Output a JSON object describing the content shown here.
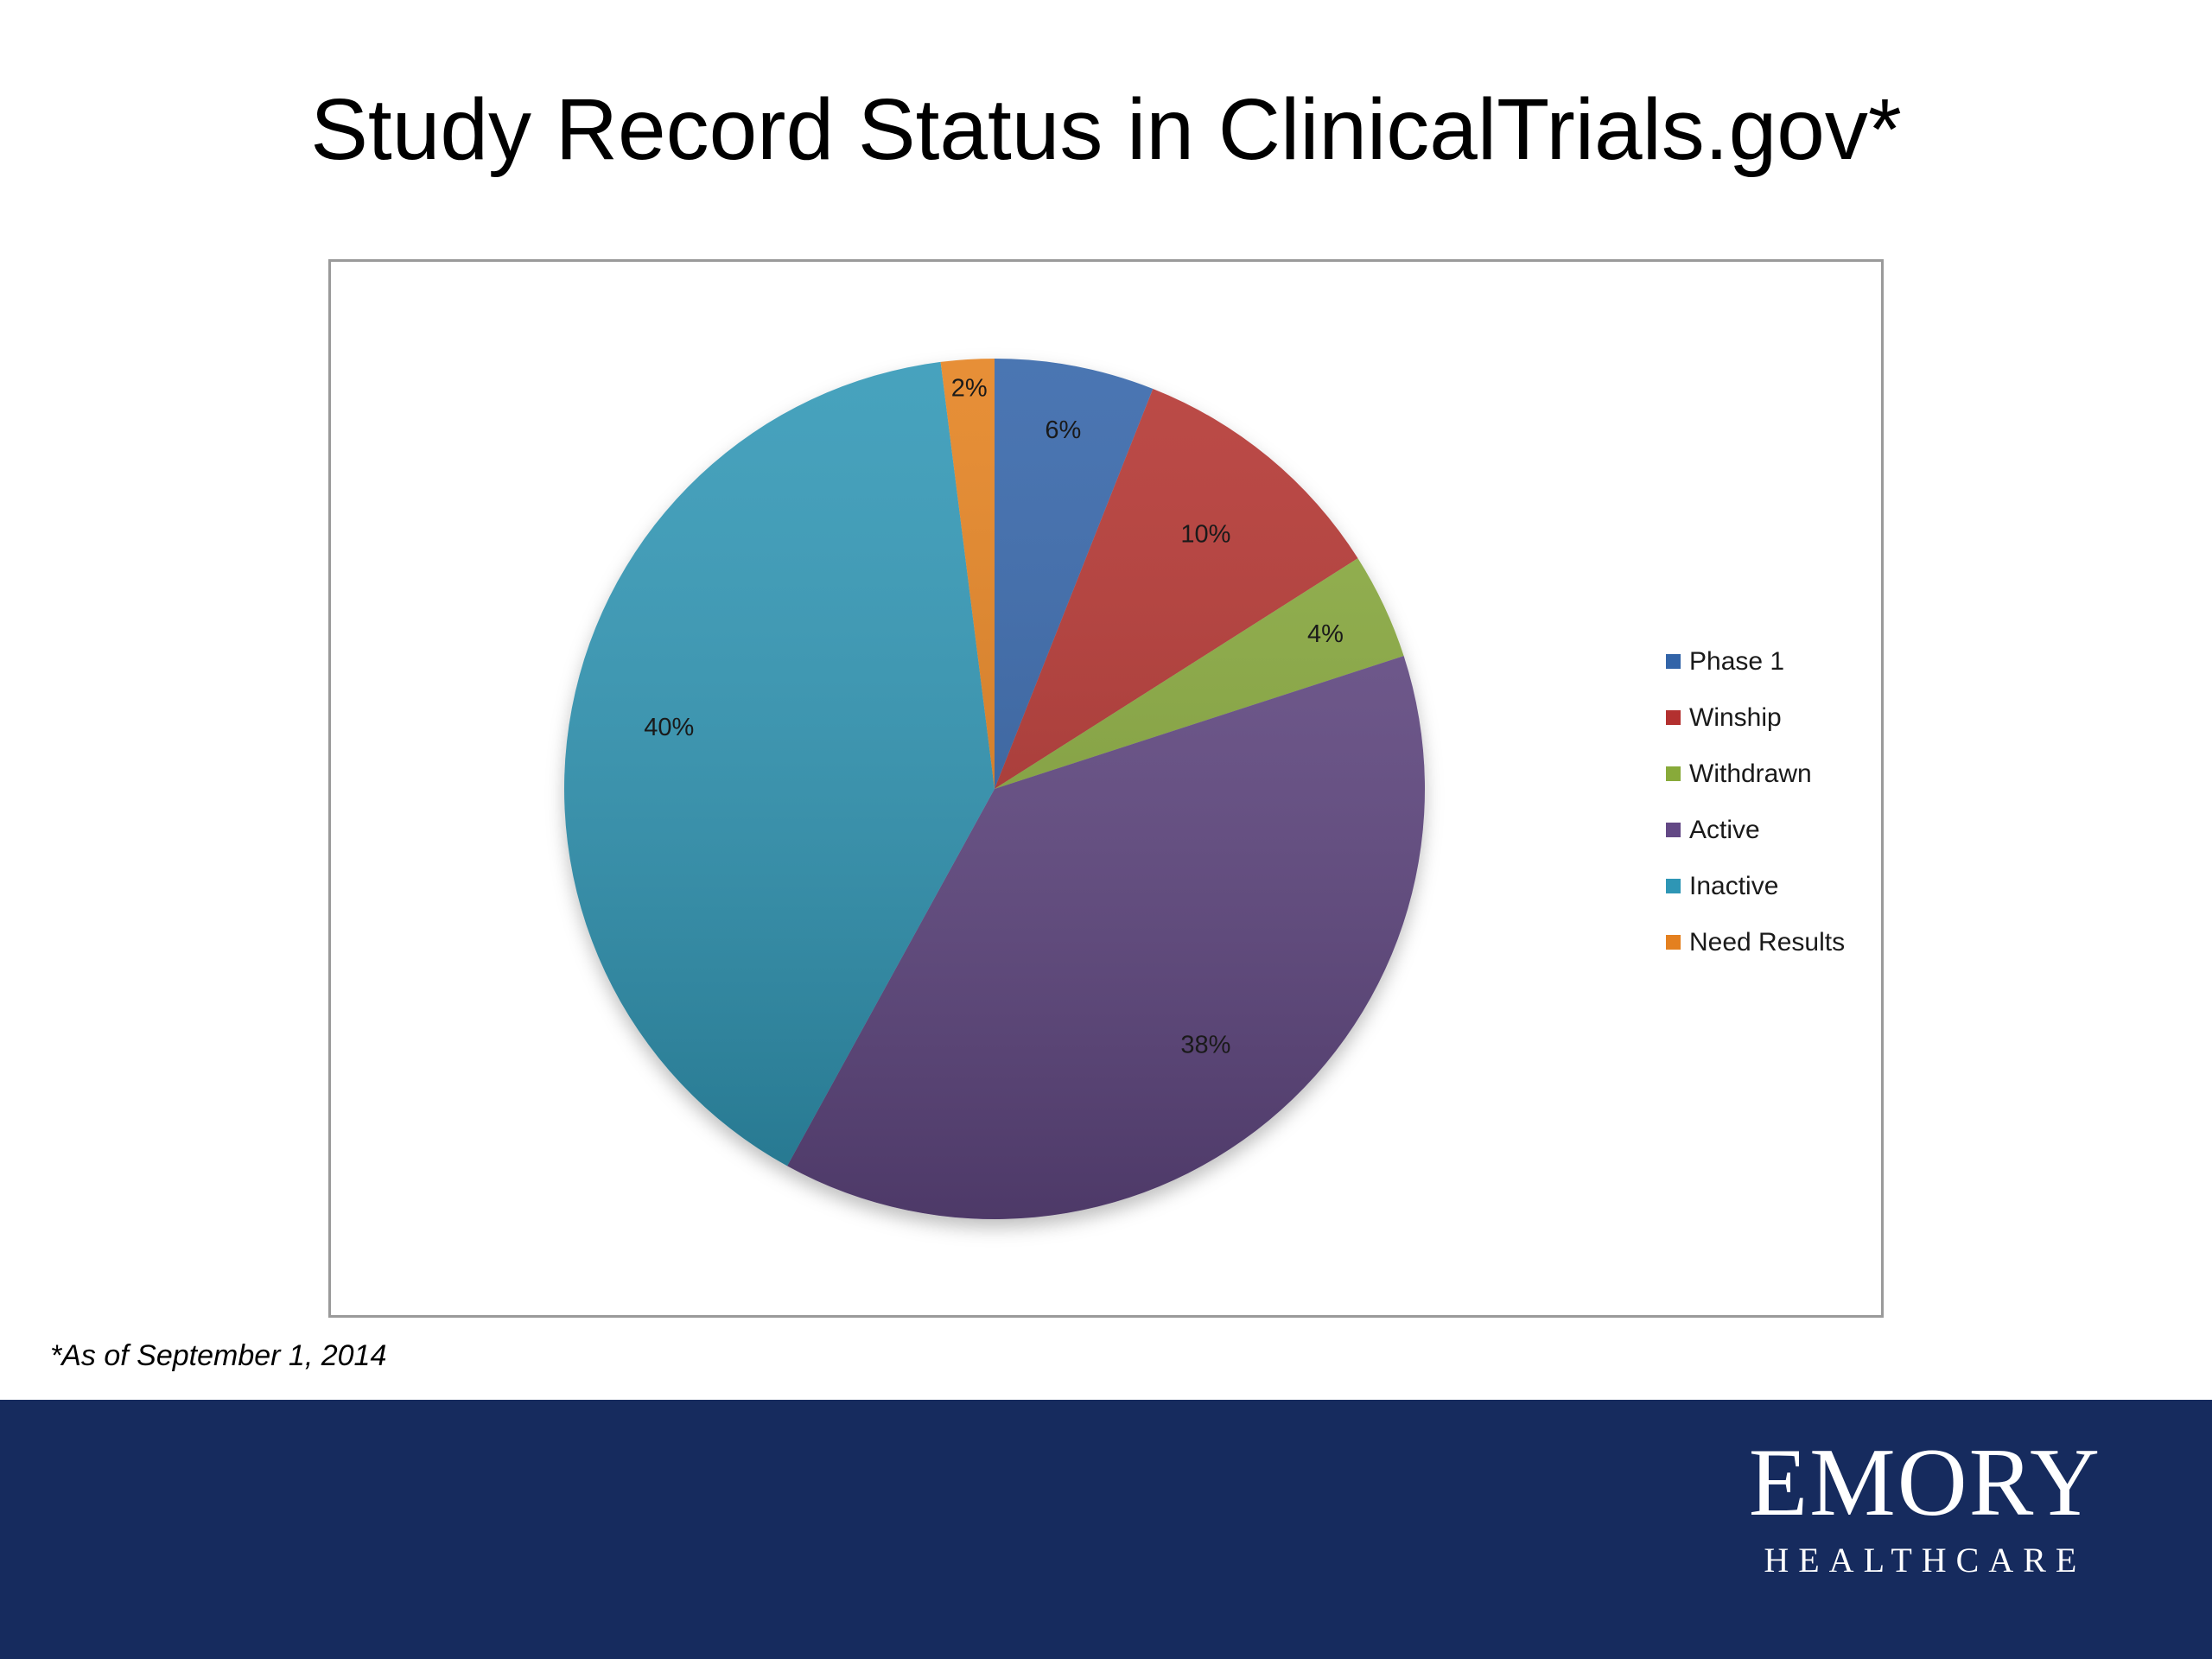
{
  "slide": {
    "title": "Study Record Status in ClinicalTrials.gov*",
    "footnote": "*As of September 1, 2014"
  },
  "logo": {
    "main": "EMORY",
    "sub": "HEALTHCARE"
  },
  "colors": {
    "footer_band": "#162b5e"
  },
  "chart_data": {
    "type": "pie",
    "title": "",
    "legend_position": "right",
    "slices": [
      {
        "label": "Phase 1",
        "value": 6,
        "display": "6%",
        "color": "#3264a8"
      },
      {
        "label": "Winship",
        "value": 10,
        "display": "10%",
        "color": "#b3302f"
      },
      {
        "label": "Withdrawn",
        "value": 4,
        "display": "4%",
        "color": "#88aa3a"
      },
      {
        "label": "Active",
        "value": 38,
        "display": "38%",
        "color": "#634885"
      },
      {
        "label": "Inactive",
        "value": 40,
        "display": "40%",
        "color": "#2e96b5"
      },
      {
        "label": "Need Results",
        "value": 2,
        "display": "2%",
        "color": "#e4801f"
      }
    ]
  }
}
